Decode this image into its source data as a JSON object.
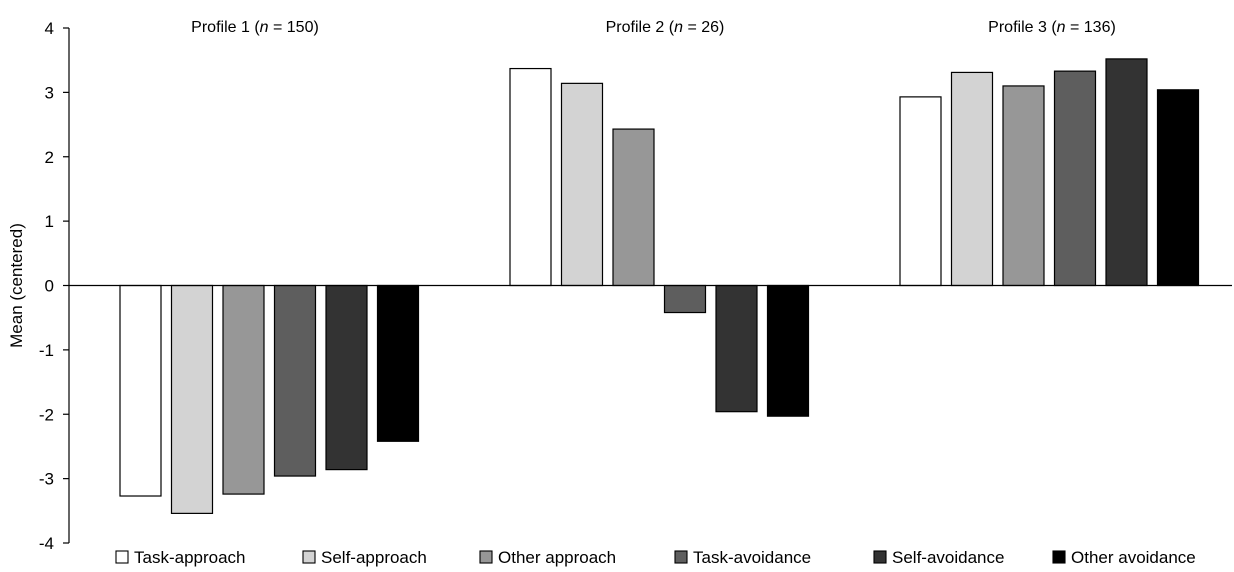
{
  "chart_data": {
    "type": "bar",
    "ylabel": "Mean (centered)",
    "ylim": [
      -4,
      4
    ],
    "yticks": [
      -4,
      -3,
      -2,
      -1,
      0,
      1,
      2,
      3,
      4
    ],
    "groups": [
      {
        "label": "Profile 1",
        "n": "150"
      },
      {
        "label": "Profile 2",
        "n": "26"
      },
      {
        "label": "Profile 3",
        "n": "136"
      }
    ],
    "n_symbol": "n",
    "series": [
      {
        "name": "Task-approach",
        "color": "#ffffff",
        "values": [
          -3.27,
          3.37,
          2.93
        ]
      },
      {
        "name": "Self-approach",
        "color": "#d3d3d3",
        "values": [
          -3.54,
          3.14,
          3.31
        ]
      },
      {
        "name": "Other approach",
        "color": "#979797",
        "values": [
          -3.24,
          2.43,
          3.1
        ]
      },
      {
        "name": "Task-avoidance",
        "color": "#5e5e5e",
        "values": [
          -2.96,
          -0.42,
          3.33
        ]
      },
      {
        "name": "Self-avoidance",
        "color": "#333333",
        "values": [
          -2.86,
          -1.96,
          3.52
        ]
      },
      {
        "name": "Other avoidance",
        "color": "#000000",
        "values": [
          -2.42,
          -2.03,
          3.04
        ]
      }
    ],
    "grid": false,
    "legend": "bottom"
  }
}
